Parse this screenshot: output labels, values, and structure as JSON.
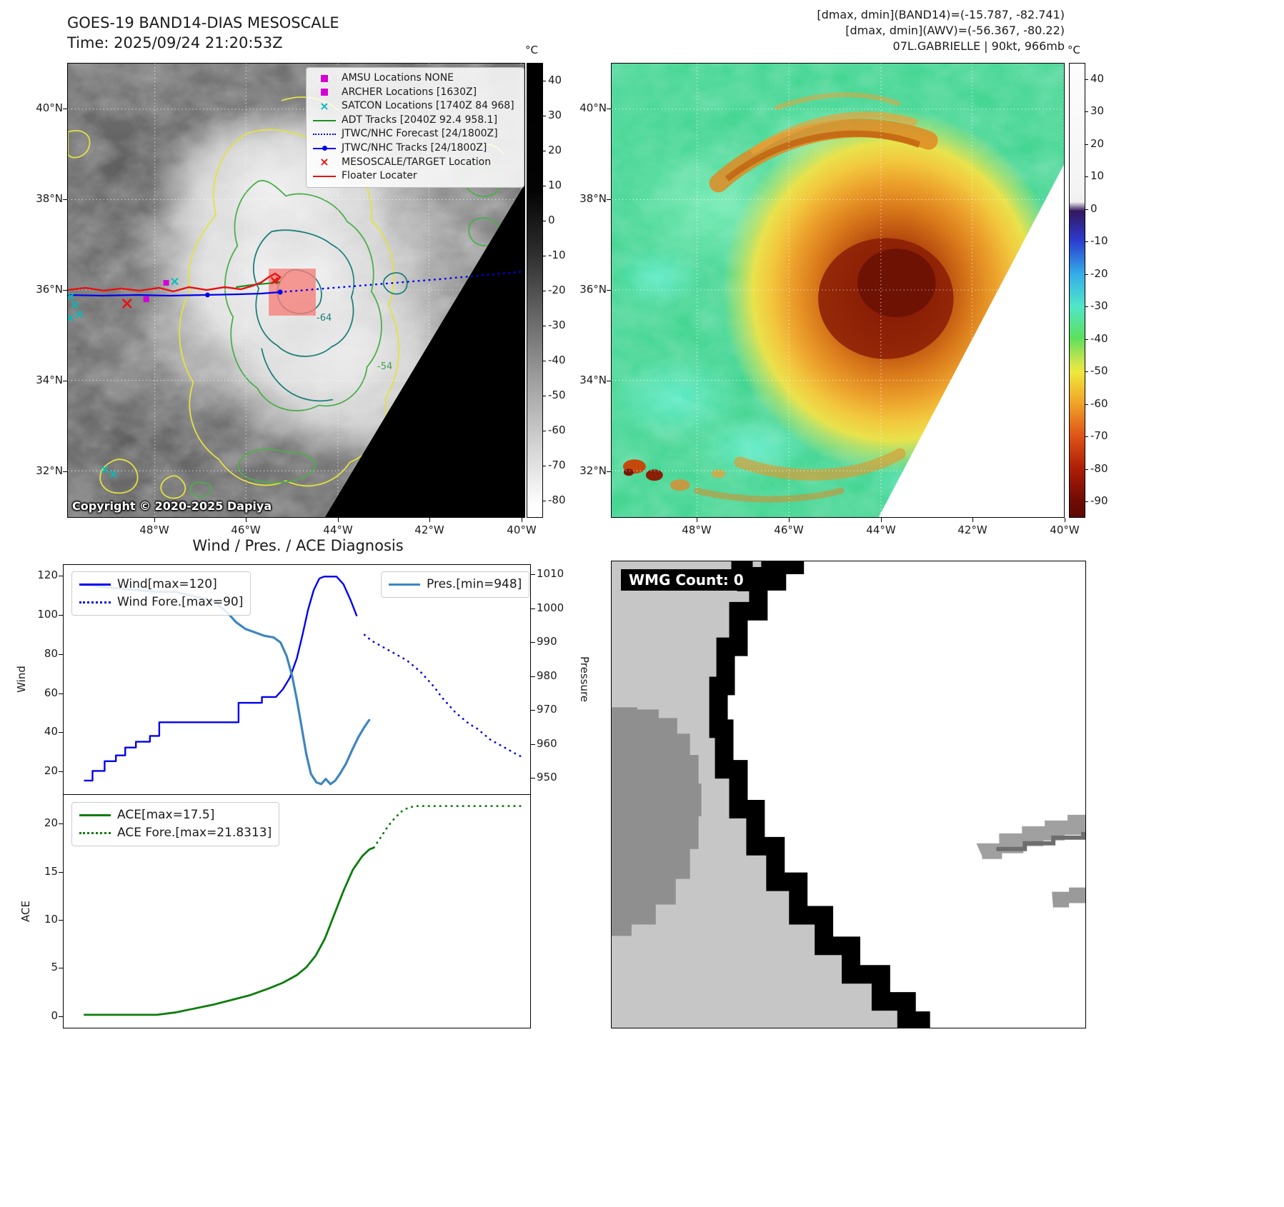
{
  "header": {
    "title": "GOES-19 BAND14-DIAS MESOSCALE",
    "time_line": "Time: 2025/09/24 21:20:53Z",
    "dmax_band14": "[dmax, dmin](BAND14)=(-15.787, -82.741)",
    "dmax_awv": "[dmax, dmin](AWV)=(-56.367, -80.22)",
    "storm_line": "07L.GABRIELLE | 90kt, 966mb"
  },
  "map_left": {
    "lat_ticks": [
      "40°N",
      "38°N",
      "36°N",
      "34°N",
      "32°N"
    ],
    "lon_ticks": [
      "48°W",
      "46°W",
      "44°W",
      "42°W",
      "40°W"
    ],
    "colorbar": {
      "unit": "°C",
      "ticks": [
        40,
        30,
        20,
        10,
        0,
        -10,
        -20,
        -30,
        -40,
        -50,
        -60,
        -70,
        -80
      ]
    },
    "legend": [
      {
        "marker": "square",
        "color": "#d400d4",
        "label": "AMSU Locations NONE"
      },
      {
        "marker": "square",
        "color": "#d400d4",
        "label": "ARCHER Locations [1630Z]"
      },
      {
        "marker": "x",
        "color": "#00bcbc",
        "label": "SATCON Locations [1740Z 84 968]"
      },
      {
        "marker": "line",
        "color": "#1f8f1f",
        "label": "ADT Tracks [2040Z 92.4 958.1]"
      },
      {
        "marker": "dotted",
        "color": "#0000ee",
        "label": "JTWC/NHC Forecast [24/1800Z]"
      },
      {
        "marker": "line-dot",
        "color": "#0000ee",
        "label": "JTWC/NHC Tracks [24/1800Z]"
      },
      {
        "marker": "x",
        "color": "#e81111",
        "label": "MESOSCALE/TARGET Location"
      },
      {
        "marker": "line",
        "color": "#e81111",
        "label": "Floater Locater"
      }
    ],
    "contour_labels": [
      "-64",
      "-54"
    ],
    "copyright": "Copyright © 2020-2025 Dapiya"
  },
  "map_right": {
    "lat_ticks": [
      "40°N",
      "38°N",
      "36°N",
      "34°N",
      "32°N"
    ],
    "lon_ticks": [
      "48°W",
      "46°W",
      "44°W",
      "42°W",
      "40°W"
    ],
    "colorbar": {
      "unit": "°C",
      "ticks": [
        40,
        30,
        20,
        10,
        0,
        -10,
        -20,
        -30,
        -40,
        -50,
        -60,
        -70,
        -80,
        -90
      ]
    }
  },
  "wmg": {
    "label": "WMG Count: 0"
  },
  "chart_data": [
    {
      "type": "line",
      "title": "Wind / Pres. / ACE Diagnosis",
      "xlabel": "",
      "x_note": "normalized time axis (no x tick labels shown)",
      "ylabel_left": "Wind",
      "ylabel_right": "Pressure",
      "xlim": [
        0,
        1
      ],
      "ylim_left": [
        8,
        126
      ],
      "ylim_right": [
        945,
        1013
      ],
      "yticks_left": [
        20,
        40,
        60,
        80,
        100,
        120
      ],
      "yticks_right": [
        950,
        960,
        970,
        980,
        990,
        1000,
        1010
      ],
      "grid": false,
      "legend_position": "upper-left and upper-right",
      "series": [
        {
          "name": "Wind[max=120]",
          "axis": "left",
          "style": "solid",
          "color": "#0000ee",
          "width": 2.4,
          "x": [
            0.045,
            0.062,
            0.062,
            0.088,
            0.088,
            0.112,
            0.112,
            0.132,
            0.132,
            0.155,
            0.155,
            0.185,
            0.185,
            0.205,
            0.205,
            0.375,
            0.375,
            0.425,
            0.425,
            0.455,
            0.47,
            0.485,
            0.5,
            0.512,
            0.524,
            0.536,
            0.548,
            0.558,
            0.585,
            0.6,
            0.615,
            0.628
          ],
          "y": [
            15,
            15,
            20,
            20,
            25,
            25,
            28,
            28,
            32,
            32,
            35,
            35,
            38,
            38,
            45,
            45,
            55,
            55,
            58,
            58,
            62,
            68,
            78,
            90,
            103,
            113,
            119,
            120,
            120,
            116,
            108,
            100
          ]
        },
        {
          "name": "Wind Fore.[max=90]",
          "axis": "left",
          "style": "dotted",
          "color": "#0000ee",
          "width": 2.6,
          "x": [
            0.645,
            0.66,
            0.675,
            0.69,
            0.705,
            0.72,
            0.735,
            0.75,
            0.765,
            0.78,
            0.795,
            0.81,
            0.825,
            0.84,
            0.855,
            0.87,
            0.885,
            0.9,
            0.915,
            0.93,
            0.945,
            0.96,
            0.975,
            0.985
          ],
          "y": [
            90,
            87,
            85,
            83,
            81,
            79,
            77,
            74,
            71,
            67,
            63,
            58,
            54,
            50,
            47,
            44,
            42,
            39,
            36,
            34,
            32,
            30,
            28,
            27
          ]
        },
        {
          "name": "Pres.[min=948]",
          "axis": "right",
          "style": "solid",
          "color": "#3d85c0",
          "width": 3.2,
          "x": [
            0.045,
            0.08,
            0.12,
            0.16,
            0.2,
            0.24,
            0.27,
            0.3,
            0.325,
            0.35,
            0.37,
            0.39,
            0.41,
            0.43,
            0.45,
            0.465,
            0.478,
            0.49,
            0.5,
            0.51,
            0.52,
            0.53,
            0.542,
            0.552,
            0.562,
            0.572,
            0.582,
            0.592,
            0.605,
            0.618,
            0.632,
            0.645,
            0.655
          ],
          "y": [
            1007,
            1006.5,
            1006,
            1005.5,
            1005,
            1005,
            1004,
            1003,
            1002,
            999,
            996,
            994,
            993,
            992,
            991.5,
            990,
            986,
            980,
            973,
            965,
            957,
            951,
            948.5,
            948,
            949.5,
            948,
            949,
            951,
            954,
            958,
            962,
            965,
            967
          ]
        }
      ]
    },
    {
      "type": "line",
      "title": "",
      "ylabel_left": "ACE",
      "xlim": [
        0,
        1
      ],
      "ylim_left": [
        -1.3,
        23
      ],
      "yticks_left": [
        0,
        5,
        10,
        15,
        20
      ],
      "grid": false,
      "legend_position": "upper-left",
      "series": [
        {
          "name": "ACE[max=17.5]",
          "axis": "left",
          "style": "solid",
          "color": "#0a7d0a",
          "width": 2.8,
          "x": [
            0.045,
            0.1,
            0.15,
            0.2,
            0.24,
            0.28,
            0.32,
            0.36,
            0.4,
            0.44,
            0.47,
            0.5,
            0.52,
            0.54,
            0.56,
            0.58,
            0.6,
            0.62,
            0.64,
            0.655,
            0.665
          ],
          "y": [
            0.05,
            0.05,
            0.05,
            0.05,
            0.3,
            0.7,
            1.1,
            1.6,
            2.1,
            2.8,
            3.4,
            4.2,
            5.0,
            6.2,
            8.0,
            10.5,
            13.0,
            15.2,
            16.6,
            17.3,
            17.5
          ]
        },
        {
          "name": "ACE Fore.[max=21.8313]",
          "axis": "left",
          "style": "dotted",
          "color": "#0a7d0a",
          "width": 2.8,
          "x": [
            0.665,
            0.68,
            0.695,
            0.71,
            0.725,
            0.74,
            0.755,
            0.78,
            0.82,
            0.86,
            0.9,
            0.94,
            0.98
          ],
          "y": [
            17.5,
            18.6,
            19.7,
            20.6,
            21.3,
            21.7,
            21.83,
            21.83,
            21.83,
            21.83,
            21.83,
            21.83,
            21.83
          ]
        }
      ]
    }
  ]
}
